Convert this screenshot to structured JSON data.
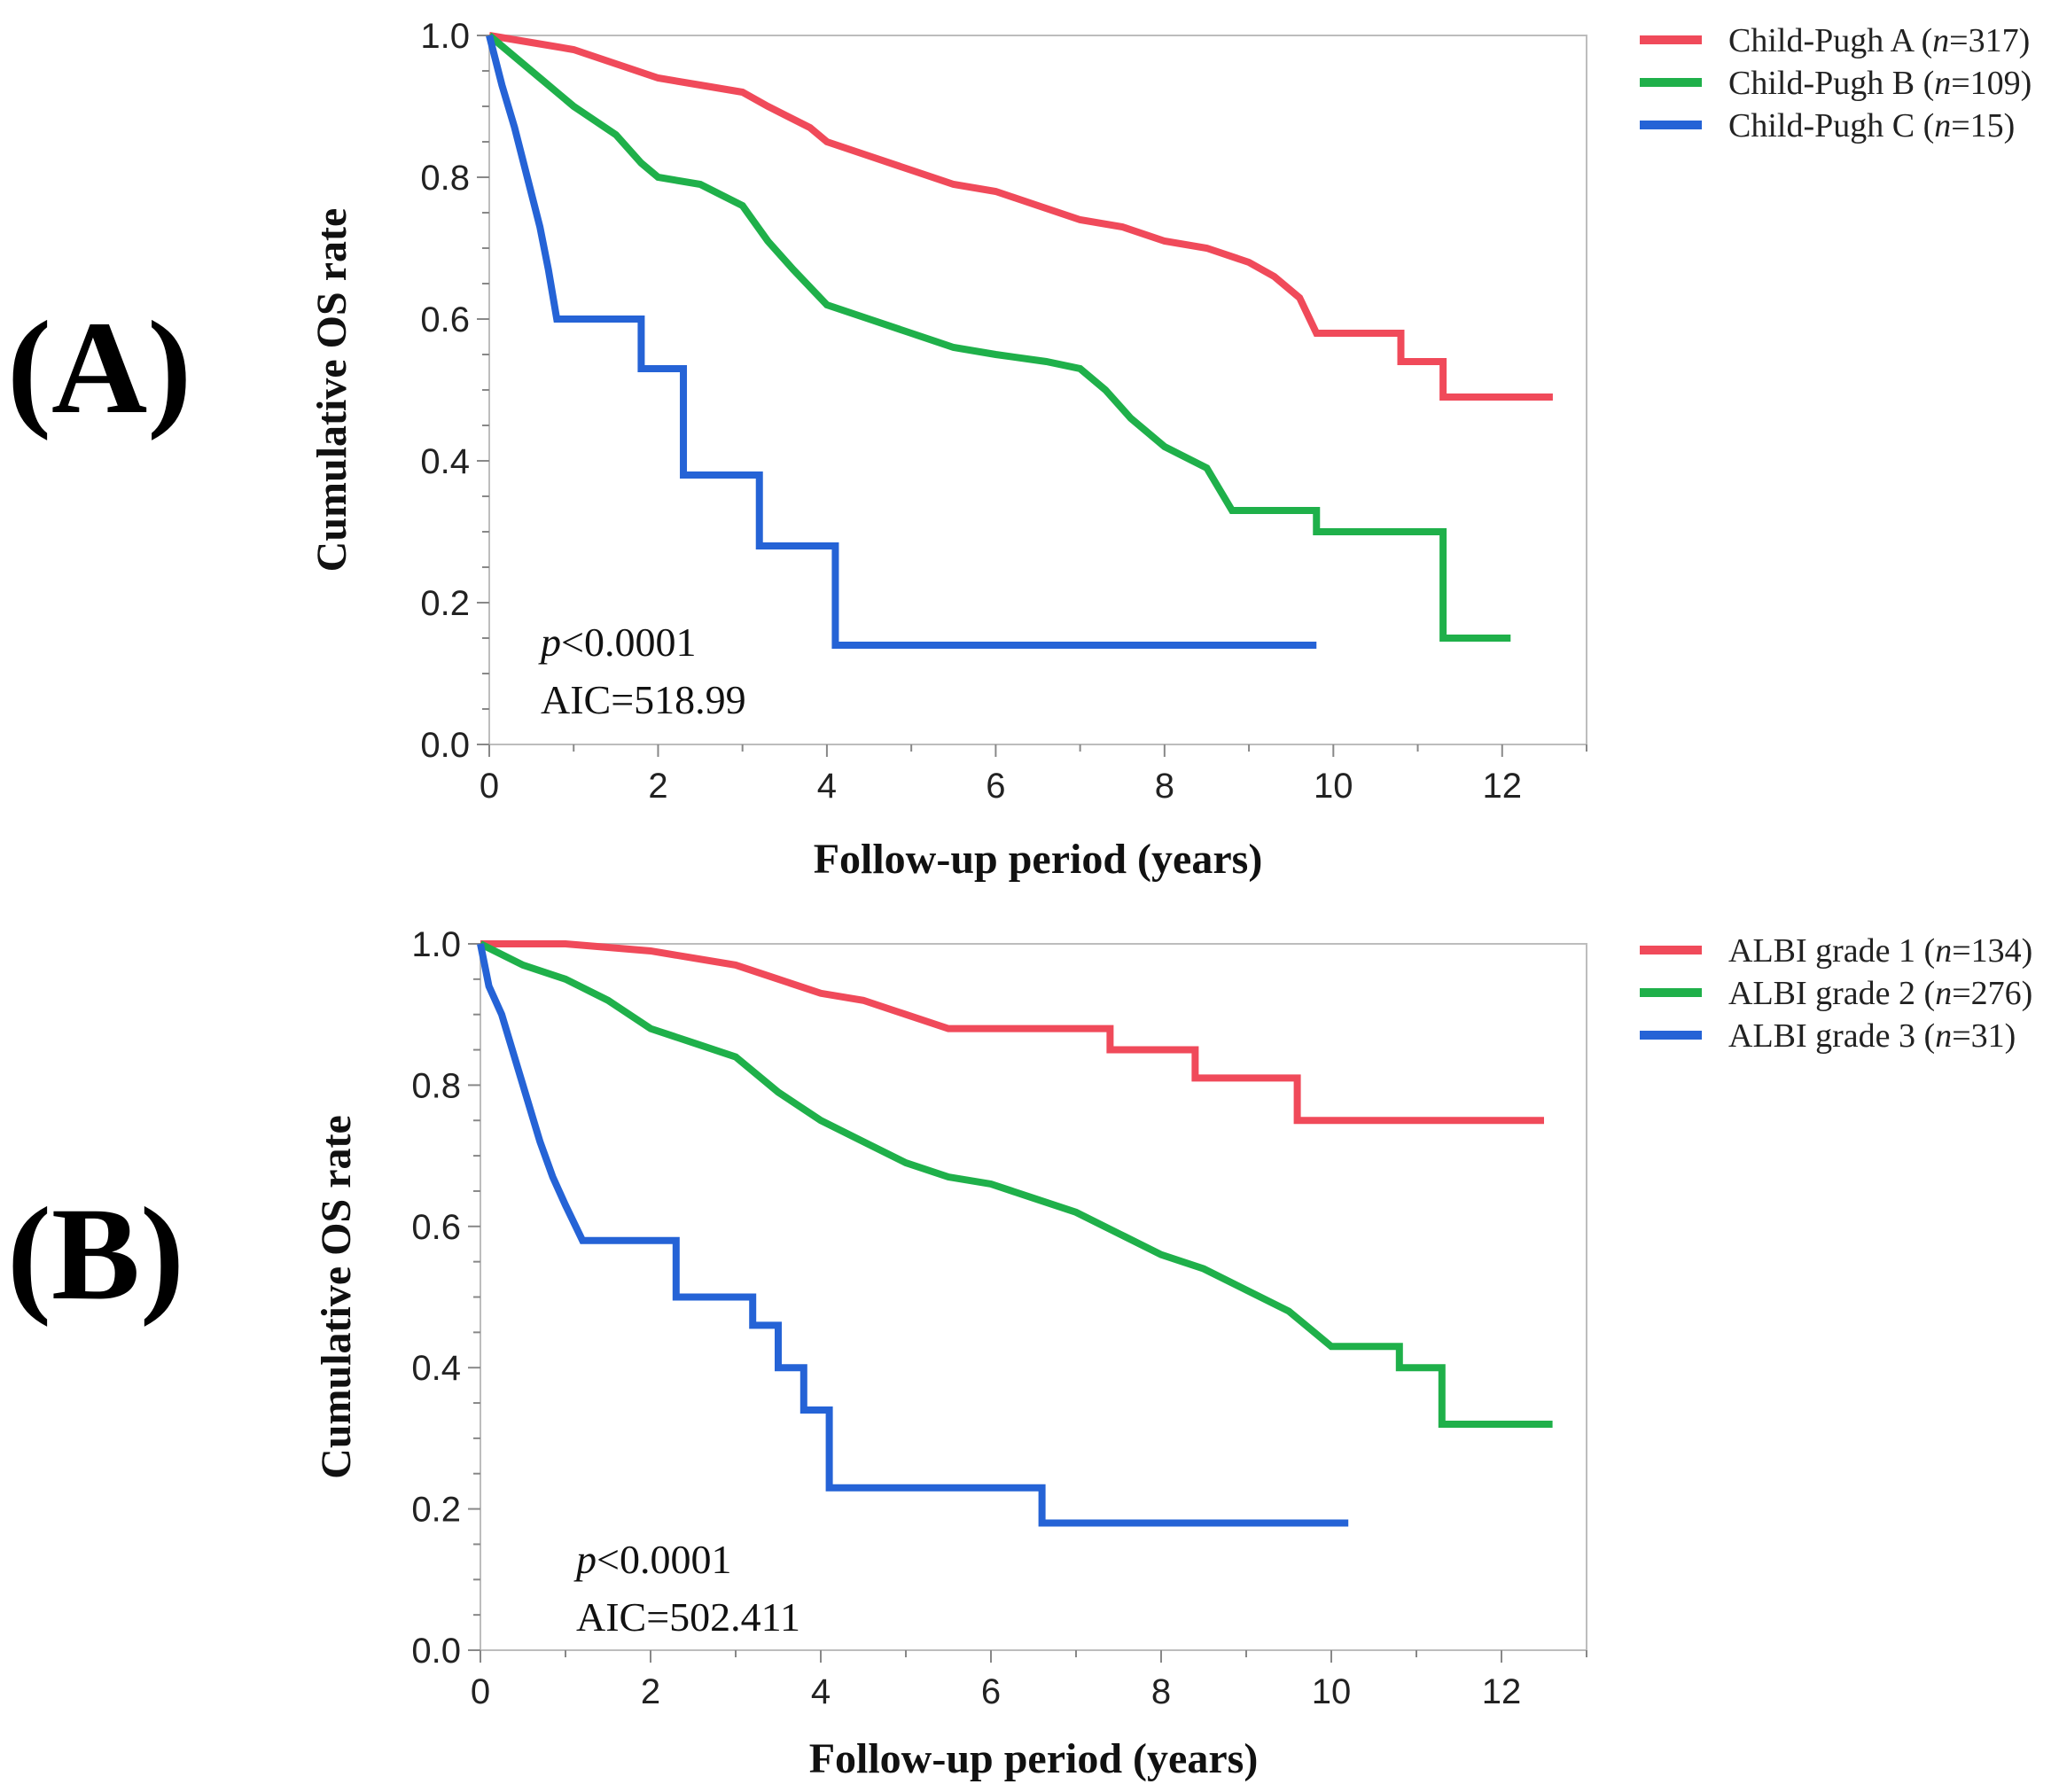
{
  "chart_data": [
    {
      "panel_label": "(A)",
      "type": "line",
      "xlabel": "Follow-up period (years)",
      "ylabel": "Cumulative OS rate",
      "xlim": [
        0,
        13
      ],
      "ylim": [
        0,
        1.0
      ],
      "xticks": [
        "0",
        "2",
        "4",
        "6",
        "8",
        "10",
        "12"
      ],
      "yticks": [
        "0.0",
        "0.2",
        "0.4",
        "0.6",
        "0.8",
        "1.0"
      ],
      "annotation_p": "p<0.0001",
      "annotation_aic": "AIC=518.99",
      "series": [
        {
          "name": "Child-Pugh A (n=317)",
          "color": "#f04a5a",
          "points": [
            [
              0,
              1.0
            ],
            [
              0.5,
              0.99
            ],
            [
              1.0,
              0.98
            ],
            [
              1.5,
              0.96
            ],
            [
              2.0,
              0.94
            ],
            [
              2.5,
              0.93
            ],
            [
              3.0,
              0.92
            ],
            [
              3.3,
              0.9
            ],
            [
              3.8,
              0.87
            ],
            [
              4.0,
              0.85
            ],
            [
              4.5,
              0.83
            ],
            [
              5.0,
              0.81
            ],
            [
              5.5,
              0.79
            ],
            [
              6.0,
              0.78
            ],
            [
              6.5,
              0.76
            ],
            [
              7.0,
              0.74
            ],
            [
              7.5,
              0.73
            ],
            [
              8.0,
              0.71
            ],
            [
              8.5,
              0.7
            ],
            [
              9.0,
              0.68
            ],
            [
              9.3,
              0.66
            ],
            [
              9.6,
              0.63
            ],
            [
              9.8,
              0.58
            ],
            [
              10.8,
              0.58
            ],
            [
              10.8,
              0.54
            ],
            [
              11.3,
              0.54
            ],
            [
              11.3,
              0.49
            ],
            [
              12.6,
              0.49
            ]
          ]
        },
        {
          "name": "Child-Pugh B (n=109)",
          "color": "#1fb04a",
          "points": [
            [
              0,
              1.0
            ],
            [
              0.3,
              0.97
            ],
            [
              0.6,
              0.94
            ],
            [
              1.0,
              0.9
            ],
            [
              1.5,
              0.86
            ],
            [
              1.8,
              0.82
            ],
            [
              2.0,
              0.8
            ],
            [
              2.5,
              0.79
            ],
            [
              3.0,
              0.76
            ],
            [
              3.3,
              0.71
            ],
            [
              3.6,
              0.67
            ],
            [
              4.0,
              0.62
            ],
            [
              4.5,
              0.6
            ],
            [
              5.0,
              0.58
            ],
            [
              5.5,
              0.56
            ],
            [
              6.0,
              0.55
            ],
            [
              6.6,
              0.54
            ],
            [
              7.0,
              0.53
            ],
            [
              7.3,
              0.5
            ],
            [
              7.6,
              0.46
            ],
            [
              8.0,
              0.42
            ],
            [
              8.5,
              0.39
            ],
            [
              8.8,
              0.33
            ],
            [
              9.8,
              0.33
            ],
            [
              9.8,
              0.3
            ],
            [
              11.3,
              0.3
            ],
            [
              11.3,
              0.15
            ],
            [
              12.1,
              0.15
            ]
          ]
        },
        {
          "name": "Child-Pugh C (n=15)",
          "color": "#2563d6",
          "points": [
            [
              0,
              1.0
            ],
            [
              0.15,
              0.93
            ],
            [
              0.3,
              0.87
            ],
            [
              0.45,
              0.8
            ],
            [
              0.6,
              0.73
            ],
            [
              0.7,
              0.67
            ],
            [
              0.8,
              0.6
            ],
            [
              1.8,
              0.6
            ],
            [
              1.8,
              0.53
            ],
            [
              2.3,
              0.53
            ],
            [
              2.3,
              0.38
            ],
            [
              3.2,
              0.38
            ],
            [
              3.2,
              0.28
            ],
            [
              4.1,
              0.28
            ],
            [
              4.1,
              0.14
            ],
            [
              9.8,
              0.14
            ]
          ]
        }
      ]
    },
    {
      "panel_label": "(B)",
      "type": "line",
      "xlabel": "Follow-up period (years)",
      "ylabel": "Cumulative OS rate",
      "xlim": [
        0,
        13
      ],
      "ylim": [
        0,
        1.0
      ],
      "xticks": [
        "0",
        "2",
        "4",
        "6",
        "8",
        "10",
        "12"
      ],
      "yticks": [
        "0.0",
        "0.2",
        "0.4",
        "0.6",
        "0.8",
        "1.0"
      ],
      "annotation_p": "p<0.0001",
      "annotation_aic": "AIC=502.411",
      "series": [
        {
          "name": "ALBI grade 1 (n=134)",
          "color": "#f04a5a",
          "points": [
            [
              0,
              1.0
            ],
            [
              1.0,
              1.0
            ],
            [
              2.0,
              0.99
            ],
            [
              2.5,
              0.98
            ],
            [
              3.0,
              0.97
            ],
            [
              3.5,
              0.95
            ],
            [
              4.0,
              0.93
            ],
            [
              4.5,
              0.92
            ],
            [
              5.0,
              0.9
            ],
            [
              5.5,
              0.88
            ],
            [
              7.4,
              0.88
            ],
            [
              7.4,
              0.85
            ],
            [
              8.4,
              0.85
            ],
            [
              8.4,
              0.81
            ],
            [
              9.6,
              0.81
            ],
            [
              9.6,
              0.75
            ],
            [
              12.5,
              0.75
            ]
          ]
        },
        {
          "name": "ALBI grade 2 (n=276)",
          "color": "#1fb04a",
          "points": [
            [
              0,
              1.0
            ],
            [
              0.5,
              0.97
            ],
            [
              1.0,
              0.95
            ],
            [
              1.5,
              0.92
            ],
            [
              2.0,
              0.88
            ],
            [
              2.5,
              0.86
            ],
            [
              3.0,
              0.84
            ],
            [
              3.5,
              0.79
            ],
            [
              4.0,
              0.75
            ],
            [
              4.5,
              0.72
            ],
            [
              5.0,
              0.69
            ],
            [
              5.5,
              0.67
            ],
            [
              6.0,
              0.66
            ],
            [
              6.5,
              0.64
            ],
            [
              7.0,
              0.62
            ],
            [
              7.5,
              0.59
            ],
            [
              8.0,
              0.56
            ],
            [
              8.5,
              0.54
            ],
            [
              9.0,
              0.51
            ],
            [
              9.5,
              0.48
            ],
            [
              9.8,
              0.45
            ],
            [
              10.0,
              0.43
            ],
            [
              10.8,
              0.43
            ],
            [
              10.8,
              0.4
            ],
            [
              11.3,
              0.4
            ],
            [
              11.3,
              0.32
            ],
            [
              12.6,
              0.32
            ]
          ]
        },
        {
          "name": "ALBI grade 3 (n=31)",
          "color": "#2563d6",
          "points": [
            [
              0,
              1.0
            ],
            [
              0.1,
              0.94
            ],
            [
              0.25,
              0.9
            ],
            [
              0.4,
              0.84
            ],
            [
              0.55,
              0.78
            ],
            [
              0.7,
              0.72
            ],
            [
              0.85,
              0.67
            ],
            [
              1.0,
              0.63
            ],
            [
              1.2,
              0.58
            ],
            [
              2.3,
              0.58
            ],
            [
              2.3,
              0.5
            ],
            [
              3.2,
              0.5
            ],
            [
              3.2,
              0.46
            ],
            [
              3.5,
              0.46
            ],
            [
              3.5,
              0.4
            ],
            [
              3.8,
              0.4
            ],
            [
              3.8,
              0.34
            ],
            [
              4.1,
              0.34
            ],
            [
              4.1,
              0.23
            ],
            [
              6.6,
              0.23
            ],
            [
              6.6,
              0.18
            ],
            [
              10.2,
              0.18
            ]
          ]
        }
      ]
    }
  ]
}
